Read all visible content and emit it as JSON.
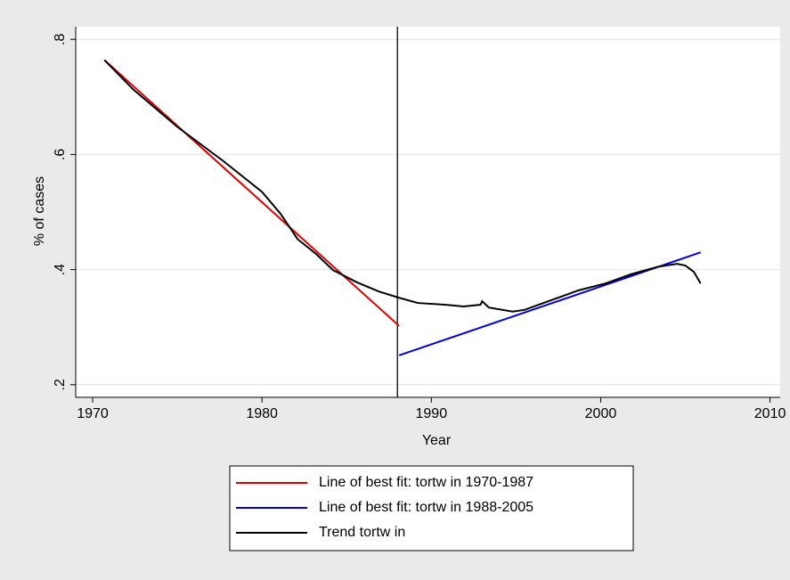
{
  "chart_data": {
    "type": "line",
    "xlabel": "Year",
    "ylabel": "% of cases",
    "xlim": [
      1969,
      2010.6
    ],
    "ylim": [
      0.178,
      0.822
    ],
    "xticks": [
      1970,
      1980,
      1990,
      2000,
      2010
    ],
    "yticks": [
      {
        "value": 0.2,
        "label": ".2"
      },
      {
        "value": 0.4,
        "label": ".4"
      },
      {
        "value": 0.6,
        "label": ".6"
      },
      {
        "value": 0.8,
        "label": ".8"
      }
    ],
    "grid": true,
    "xline": 1988,
    "series": [
      {
        "name": "Line of best fit: tortw in 1970-1987",
        "color": "#e00000",
        "x": [
          1970.7,
          1988.1
        ],
        "values": [
          0.764,
          0.302
        ]
      },
      {
        "name": "Line of best fit: tortw in 1988-2005",
        "color": "#0000e0",
        "x": [
          1988.1,
          2005.9
        ],
        "values": [
          0.251,
          0.43
        ]
      },
      {
        "name": "Trend tortw in",
        "color": "#000000",
        "x": [
          1970.7,
          1972.4,
          1975.0,
          1977.7,
          1980.0,
          1981.1,
          1982.1,
          1983.2,
          1984.2,
          1985.6,
          1986.9,
          1988.1,
          1989.2,
          1990.8,
          1991.9,
          1992.9,
          1993.0,
          1993.4,
          1994.8,
          1995.5,
          1997.1,
          1998.7,
          2000.3,
          2001.8,
          2003.4,
          2004.5,
          2005.0,
          2005.5,
          2005.9
        ],
        "values": [
          0.764,
          0.713,
          0.648,
          0.589,
          0.535,
          0.497,
          0.453,
          0.427,
          0.399,
          0.378,
          0.362,
          0.351,
          0.342,
          0.339,
          0.336,
          0.339,
          0.345,
          0.334,
          0.327,
          0.33,
          0.347,
          0.364,
          0.376,
          0.392,
          0.405,
          0.41,
          0.407,
          0.396,
          0.376
        ]
      }
    ]
  }
}
